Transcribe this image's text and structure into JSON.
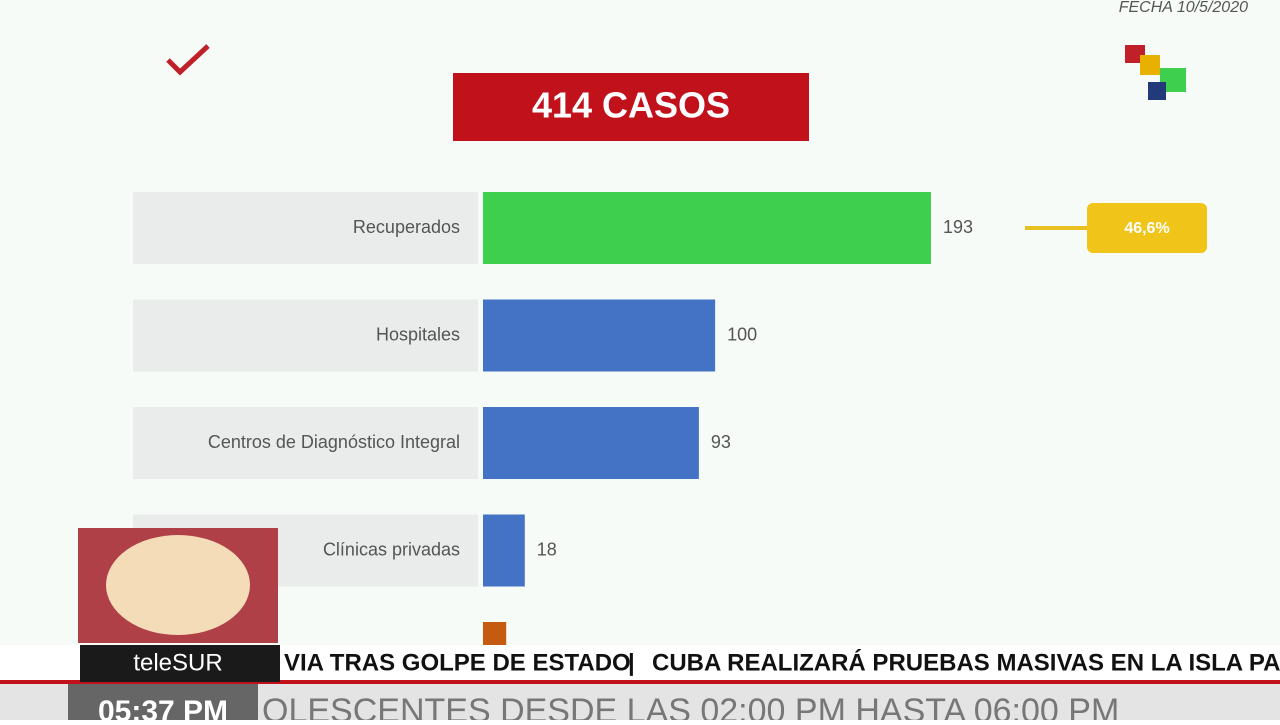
{
  "date": "FECHA 10/5/2020",
  "chart_data": {
    "type": "bar",
    "orientation": "horizontal",
    "title": "414 CASOS",
    "categories": [
      "Recuperados",
      "Hospitales",
      "Centros de Diagnóstico Integral",
      "Clínicas privadas",
      null
    ],
    "values": [
      193,
      100,
      93,
      18,
      10
    ],
    "colors": [
      "#3ecf4f",
      "#4472c4",
      "#4472c4",
      "#4472c4",
      "#c55a11"
    ],
    "annotation": "46,6%"
  },
  "ticker": {
    "brand": "teleSUR",
    "headline_1": "VIA TRAS GOLPE DE ESTADO",
    "headline_2": "CUBA REALIZARÁ PRUEBAS MASIVAS EN LA ISLA PA",
    "time": "05:37 PM",
    "crawl": "OLESCENTES DESDE LAS 02:00 PM HASTA 06:00 PM"
  }
}
